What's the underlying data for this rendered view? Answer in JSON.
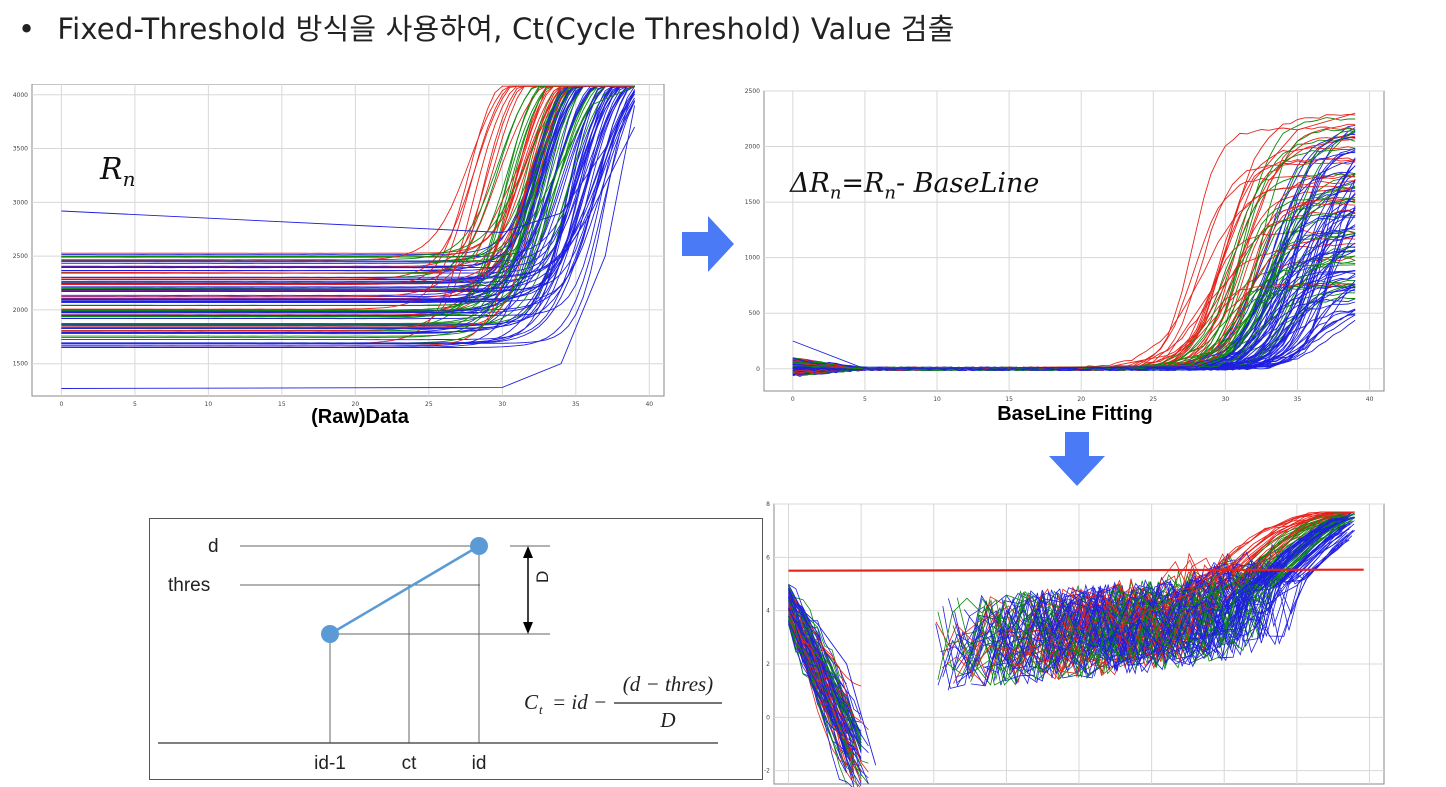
{
  "header": {
    "bullet": "•",
    "text": "Fixed-Threshold 방식을 사용하여, Ct(Cycle Threshold) Value 검출"
  },
  "colors": {
    "red": "#e8221b",
    "green": "#0c8a0c",
    "blue": "#1f1fe0",
    "threshold": "#e8221b",
    "arrow": "#4a7af5",
    "diagram_line": "#5b9bd5"
  },
  "chart_data": [
    {
      "type": "line",
      "caption": "(Raw)Data",
      "annotation": "R_n",
      "xlim": [
        -2,
        41
      ],
      "ylim": [
        1200,
        4100
      ],
      "xticks": [
        0,
        5,
        10,
        15,
        20,
        25,
        30,
        35,
        40
      ],
      "yticks": [
        1500,
        2000,
        2500,
        3000,
        3500,
        4000
      ],
      "grid": true,
      "series_colors": [
        "red",
        "green",
        "blue"
      ],
      "approx_series": [
        {
          "color": "red",
          "x": [
            0,
            25,
            28,
            31,
            33,
            35,
            39
          ],
          "y": [
            2350,
            2340,
            2450,
            3300,
            4080,
            4080,
            4080
          ]
        },
        {
          "color": "green",
          "x": [
            0,
            27,
            30,
            33,
            36,
            39
          ],
          "y": [
            2200,
            2190,
            2350,
            3100,
            3900,
            4080
          ]
        },
        {
          "color": "blue",
          "x": [
            0,
            30,
            33,
            36,
            39
          ],
          "y": [
            2100,
            2100,
            2250,
            2900,
            3700
          ]
        },
        {
          "color": "blue",
          "x": [
            0,
            30,
            34,
            37,
            39
          ],
          "y": [
            1270,
            1280,
            1500,
            2500,
            3900
          ]
        },
        {
          "color": "blue",
          "x": [
            0,
            30,
            34,
            37,
            39
          ],
          "y": [
            2920,
            2720,
            2900,
            3500,
            4050
          ]
        }
      ]
    },
    {
      "type": "line",
      "caption": "BaseLine Fitting",
      "annotation": "ΔR_n = R_n - BaseLine",
      "xlim": [
        -2,
        41
      ],
      "ylim": [
        -200,
        2500
      ],
      "xticks": [
        0,
        5,
        10,
        15,
        20,
        25,
        30,
        35,
        40
      ],
      "yticks": [
        0,
        500,
        1000,
        1500,
        2000,
        2500
      ],
      "grid": true,
      "series_colors": [
        "red",
        "green",
        "blue"
      ],
      "approx_series": [
        {
          "color": "red",
          "x": [
            0,
            5,
            22,
            26,
            29,
            32,
            35,
            39
          ],
          "y": [
            50,
            0,
            20,
            120,
            700,
            1700,
            2150,
            2300
          ]
        },
        {
          "color": "green",
          "x": [
            0,
            5,
            25,
            29,
            32,
            35,
            39
          ],
          "y": [
            30,
            0,
            20,
            150,
            900,
            1800,
            2150
          ]
        },
        {
          "color": "blue",
          "x": [
            0,
            5,
            28,
            31,
            34,
            37,
            39
          ],
          "y": [
            250,
            0,
            20,
            150,
            700,
            1400,
            1900
          ]
        }
      ]
    },
    {
      "type": "line",
      "caption": "",
      "xlim": [
        -1,
        41
      ],
      "ylim": [
        -2.5,
        8
      ],
      "yticks": [
        -2,
        0,
        2,
        4,
        6,
        8
      ],
      "grid": true,
      "threshold": 5.5,
      "series_colors": [
        "red",
        "green",
        "blue"
      ],
      "approx_series": [
        {
          "color": "blue",
          "x": [
            0,
            2,
            4,
            6
          ],
          "y": [
            4.5,
            3.5,
            2.0,
            -1.8
          ]
        },
        {
          "color": "red",
          "x": [
            25,
            29,
            32,
            35,
            39
          ],
          "y": [
            4.0,
            5.0,
            6.5,
            7.5,
            7.7
          ]
        },
        {
          "color": "green",
          "x": [
            27,
            31,
            34,
            37,
            39
          ],
          "y": [
            4.0,
            5.2,
            6.6,
            7.5,
            7.6
          ]
        },
        {
          "color": "blue",
          "x": [
            30,
            33,
            36,
            39
          ],
          "y": [
            4.3,
            5.5,
            6.9,
            7.5
          ]
        }
      ]
    }
  ],
  "diagram": {
    "labels": {
      "d": "d",
      "thres": "thres",
      "D": "D",
      "id_minus_1": "id-1",
      "ct": "ct",
      "id": "id"
    },
    "formula": {
      "lhs": "C",
      "lhs_sub": "t",
      "eq": "= id −",
      "numerator": "(d − thres)",
      "denominator": "D"
    }
  }
}
